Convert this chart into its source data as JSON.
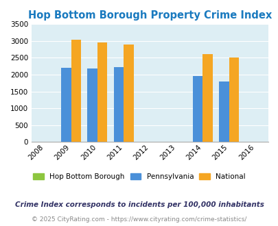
{
  "title": "Hop Bottom Borough Property Crime Index",
  "title_color": "#1a7abf",
  "years": [
    2008,
    2009,
    2010,
    2011,
    2012,
    2013,
    2014,
    2015,
    2016
  ],
  "data_years": [
    2009,
    2010,
    2011,
    2014,
    2015
  ],
  "hop_bottom": [
    0,
    0,
    0,
    0,
    0
  ],
  "pennsylvania": [
    2200,
    2175,
    2230,
    1950,
    1800
  ],
  "national": [
    3030,
    2950,
    2900,
    2610,
    2500
  ],
  "bar_color_hop": "#8dc63f",
  "bar_color_pa": "#4a90d9",
  "bar_color_national": "#f5a623",
  "bg_color": "#ddeef4",
  "ylim": [
    0,
    3500
  ],
  "yticks": [
    0,
    500,
    1000,
    1500,
    2000,
    2500,
    3000,
    3500
  ],
  "legend_labels": [
    "Hop Bottom Borough",
    "Pennsylvania",
    "National"
  ],
  "footnote1": "Crime Index corresponds to incidents per 100,000 inhabitants",
  "footnote2": "© 2025 CityRating.com - https://www.cityrating.com/crime-statistics/",
  "footnote1_color": "#333366",
  "footnote2_color": "#888888"
}
